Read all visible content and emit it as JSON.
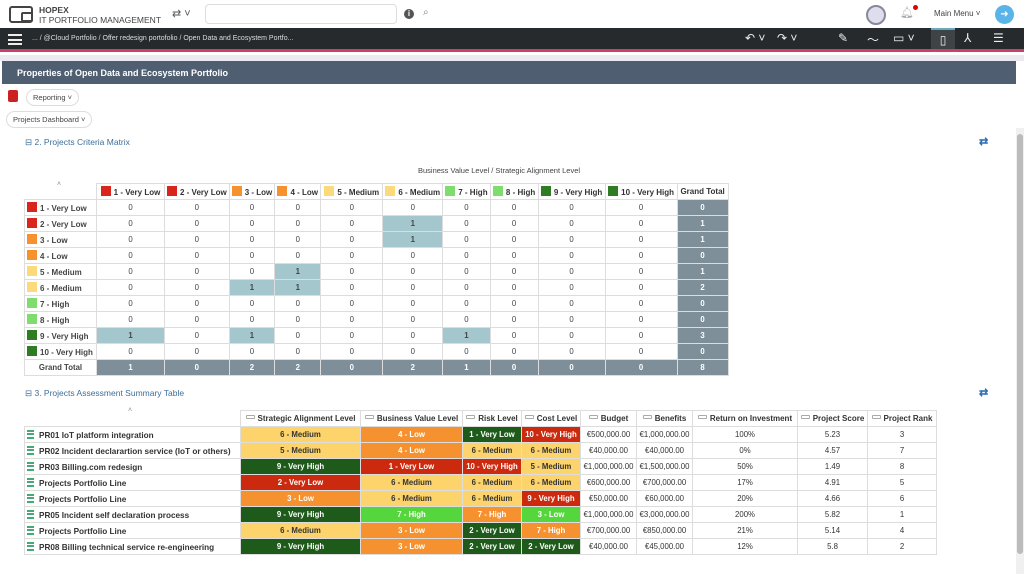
{
  "app": {
    "name": "HOPEX",
    "subtitle": "IT PORTFOLIO MANAGEMENT",
    "main_menu": "Main Menu"
  },
  "search": {
    "value": "",
    "placeholder": ""
  },
  "breadcrumb": "... / @Cloud Portfolio / Offer redesign portofolio / Open Data and Ecosystem Portfo...",
  "page_title": "Properties of Open Data and Ecosystem Portfolio",
  "reporting_label": "Reporting",
  "dashboard_label": "Projects Dashboard",
  "colors": {
    "very_low": "#d9261c",
    "low": "#f5922f",
    "medium": "#fcd97a",
    "high": "#7fdc6e",
    "very_high": "#2f7d22",
    "cell_very_low": "#cc2a0e",
    "cell_low": "#f5922f",
    "cell_medium": "#fdd36b",
    "cell_high": "#54d63c",
    "cell_very_high": "#1e5a19",
    "highlight": "#a4c6cd",
    "total": "#7e8f99"
  },
  "matrix": {
    "section_title": "2. Projects Criteria Matrix",
    "axis_title": "Business Value Level / Strategic Alignment Level",
    "levels": [
      {
        "label": "1 - Very Low",
        "color": "#d9261c"
      },
      {
        "label": "2 - Very Low",
        "color": "#d9261c"
      },
      {
        "label": "3 - Low",
        "color": "#f5922f"
      },
      {
        "label": "4 - Low",
        "color": "#f5922f"
      },
      {
        "label": "5 - Medium",
        "color": "#fcd97a"
      },
      {
        "label": "6 - Medium",
        "color": "#fcd97a"
      },
      {
        "label": "7 - High",
        "color": "#7fdc6e"
      },
      {
        "label": "8 - High",
        "color": "#7fdc6e"
      },
      {
        "label": "9 - Very High",
        "color": "#2f7d22"
      },
      {
        "label": "10 - Very High",
        "color": "#2f7d22"
      }
    ],
    "grand_total_label": "Grand Total",
    "values": [
      [
        0,
        0,
        0,
        0,
        0,
        0,
        0,
        0,
        0,
        0
      ],
      [
        0,
        0,
        0,
        0,
        0,
        1,
        0,
        0,
        0,
        0
      ],
      [
        0,
        0,
        0,
        0,
        0,
        1,
        0,
        0,
        0,
        0
      ],
      [
        0,
        0,
        0,
        0,
        0,
        0,
        0,
        0,
        0,
        0
      ],
      [
        0,
        0,
        0,
        1,
        0,
        0,
        0,
        0,
        0,
        0
      ],
      [
        0,
        0,
        1,
        1,
        0,
        0,
        0,
        0,
        0,
        0
      ],
      [
        0,
        0,
        0,
        0,
        0,
        0,
        0,
        0,
        0,
        0
      ],
      [
        0,
        0,
        0,
        0,
        0,
        0,
        0,
        0,
        0,
        0
      ],
      [
        1,
        0,
        1,
        0,
        0,
        0,
        1,
        0,
        0,
        0
      ],
      [
        0,
        0,
        0,
        0,
        0,
        0,
        0,
        0,
        0,
        0
      ]
    ],
    "row_totals": [
      0,
      1,
      1,
      0,
      1,
      2,
      0,
      0,
      3,
      0
    ],
    "col_totals": [
      1,
      0,
      2,
      2,
      0,
      2,
      1,
      0,
      0,
      0
    ],
    "grand_total": 8
  },
  "summary": {
    "section_title": "3. Projects Assessment Summary Table",
    "columns": [
      "Strategic Alignment Level",
      "Business Value Level",
      "Risk Level",
      "Cost Level",
      "Budget",
      "Benefits",
      "Return on Investment",
      "Project Score",
      "Project Rank"
    ],
    "rows": [
      {
        "name": "PR01 IoT platform integration",
        "sa": [
          "6 - Medium",
          "#fdd36b"
        ],
        "bv": [
          "4 - Low",
          "#f5922f"
        ],
        "risk": [
          "1 - Very Low",
          "#1e5a19"
        ],
        "cost": [
          "10 - Very High",
          "#cc2a0e"
        ],
        "budget": "€500,000.00",
        "benefits": "€1,000,000.00",
        "roi": "100%",
        "score": "5.23",
        "rank": "3"
      },
      {
        "name": "PR02 Incident declarartion service (IoT or others)",
        "sa": [
          "5 - Medium",
          "#fdd36b"
        ],
        "bv": [
          "4 - Low",
          "#f5922f"
        ],
        "risk": [
          "6 - Medium",
          "#fdd36b"
        ],
        "cost": [
          "6 - Medium",
          "#fdd36b"
        ],
        "budget": "€40,000.00",
        "benefits": "€40,000.00",
        "roi": "0%",
        "score": "4.57",
        "rank": "7"
      },
      {
        "name": "PR03 Billing.com redesign",
        "sa": [
          "9 - Very High",
          "#1e5a19"
        ],
        "bv": [
          "1 - Very Low",
          "#cc2a0e"
        ],
        "risk": [
          "10 - Very High",
          "#cc2a0e"
        ],
        "cost": [
          "5 - Medium",
          "#fdd36b"
        ],
        "budget": "€1,000,000.00",
        "benefits": "€1,500,000.00",
        "roi": "50%",
        "score": "1.49",
        "rank": "8"
      },
      {
        "name": "Projects Portfolio Line",
        "sa": [
          "2 - Very Low",
          "#cc2a0e"
        ],
        "bv": [
          "6 - Medium",
          "#fdd36b"
        ],
        "risk": [
          "6 - Medium",
          "#fdd36b"
        ],
        "cost": [
          "6 - Medium",
          "#fdd36b"
        ],
        "budget": "€600,000.00",
        "benefits": "€700,000.00",
        "roi": "17%",
        "score": "4.91",
        "rank": "5"
      },
      {
        "name": "Projects Portfolio Line",
        "sa": [
          "3 - Low",
          "#f5922f"
        ],
        "bv": [
          "6 - Medium",
          "#fdd36b"
        ],
        "risk": [
          "6 - Medium",
          "#fdd36b"
        ],
        "cost": [
          "9 - Very High",
          "#cc2a0e"
        ],
        "budget": "€50,000.00",
        "benefits": "€60,000.00",
        "roi": "20%",
        "score": "4.66",
        "rank": "6"
      },
      {
        "name": "PR05 Incident self declaration process",
        "sa": [
          "9 - Very High",
          "#1e5a19"
        ],
        "bv": [
          "7 - High",
          "#54d63c"
        ],
        "risk": [
          "7 - High",
          "#f5922f"
        ],
        "cost": [
          "3 - Low",
          "#54d63c"
        ],
        "budget": "€1,000,000.00",
        "benefits": "€3,000,000.00",
        "roi": "200%",
        "score": "5.82",
        "rank": "1"
      },
      {
        "name": "Projects Portfolio Line",
        "sa": [
          "6 - Medium",
          "#fdd36b"
        ],
        "bv": [
          "3 - Low",
          "#f5922f"
        ],
        "risk": [
          "2 - Very Low",
          "#1e5a19"
        ],
        "cost": [
          "7 - High",
          "#f5922f"
        ],
        "budget": "€700,000.00",
        "benefits": "€850,000.00",
        "roi": "21%",
        "score": "5.14",
        "rank": "4"
      },
      {
        "name": "PR08 Billing technical service re-engineering",
        "sa": [
          "9 - Very High",
          "#1e5a19"
        ],
        "bv": [
          "3 - Low",
          "#f5922f"
        ],
        "risk": [
          "2 - Very Low",
          "#1e5a19"
        ],
        "cost": [
          "2 - Very Low",
          "#1e5a19"
        ],
        "budget": "€40,000.00",
        "benefits": "€45,000.00",
        "roi": "12%",
        "score": "5.8",
        "rank": "2"
      }
    ]
  }
}
